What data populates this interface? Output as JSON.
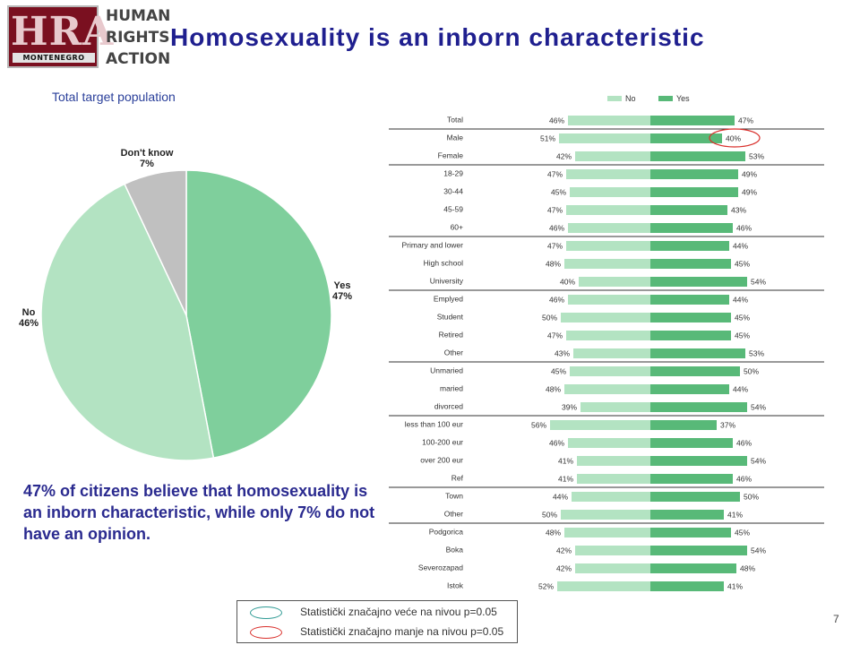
{
  "logo": {
    "letters": "HRA",
    "subtext": "MONTENEGRO",
    "line1": "HUMAN",
    "line2": "RIGHTS",
    "line3": "ACTION"
  },
  "title": "Homosexuality is an inborn characteristic",
  "subtitle": "Total target population",
  "summary": "47% of citizens believe that homosexuality is an inborn characteristic, while only 7% do not have an opinion.",
  "legend": {
    "higher": "Statistički značajno veće na nivou p=0.05",
    "lower": "Statistički značajno manje na nivou p=0.05",
    "higher_color": "#2e9a94",
    "lower_color": "#d9302c"
  },
  "page_number": "7",
  "chart_data": [
    {
      "type": "pie",
      "slices": [
        {
          "label": "Yes",
          "value": 47,
          "value_label": "47%",
          "color": "#7fcf9c"
        },
        {
          "label": "No",
          "value": 46,
          "value_label": "46%",
          "color": "#b3e3c2"
        },
        {
          "label": "Don't know",
          "value": 7,
          "value_label": "7%",
          "color": "#c0c0c0"
        }
      ]
    },
    {
      "type": "bar",
      "orientation": "horizontal-diverging",
      "legend": [
        "No",
        "Yes"
      ],
      "colors": {
        "No": "#b3e3c2",
        "Yes": "#58b978"
      },
      "categories": [
        "Total",
        "Male",
        "Female",
        "18-29",
        "30-44",
        "45-59",
        "60+",
        "Primary and lower",
        "High school",
        "University",
        "Emplyed",
        "Student",
        "Retired",
        "Other",
        "Unmaried",
        "maried",
        "divorced",
        "less than 100 eur",
        "100-200 eur",
        "over 200 eur",
        "Ref",
        "Town",
        "Other",
        "Podgorica",
        "Boka",
        "Severozapad",
        "Istok"
      ],
      "series": [
        {
          "name": "No",
          "values": [
            46,
            51,
            42,
            47,
            45,
            47,
            46,
            47,
            48,
            40,
            46,
            50,
            47,
            43,
            45,
            48,
            39,
            56,
            46,
            41,
            41,
            44,
            50,
            48,
            42,
            42,
            52
          ]
        },
        {
          "name": "Yes",
          "values": [
            47,
            40,
            53,
            49,
            49,
            43,
            46,
            44,
            45,
            54,
            44,
            45,
            45,
            53,
            50,
            44,
            54,
            37,
            46,
            54,
            46,
            50,
            41,
            45,
            54,
            48,
            41
          ]
        }
      ],
      "group_separators_after": [
        0,
        2,
        6,
        9,
        13,
        16,
        20,
        22
      ],
      "highlights": [
        {
          "category_index": 1,
          "series": "Yes",
          "type": "lower"
        }
      ]
    }
  ]
}
